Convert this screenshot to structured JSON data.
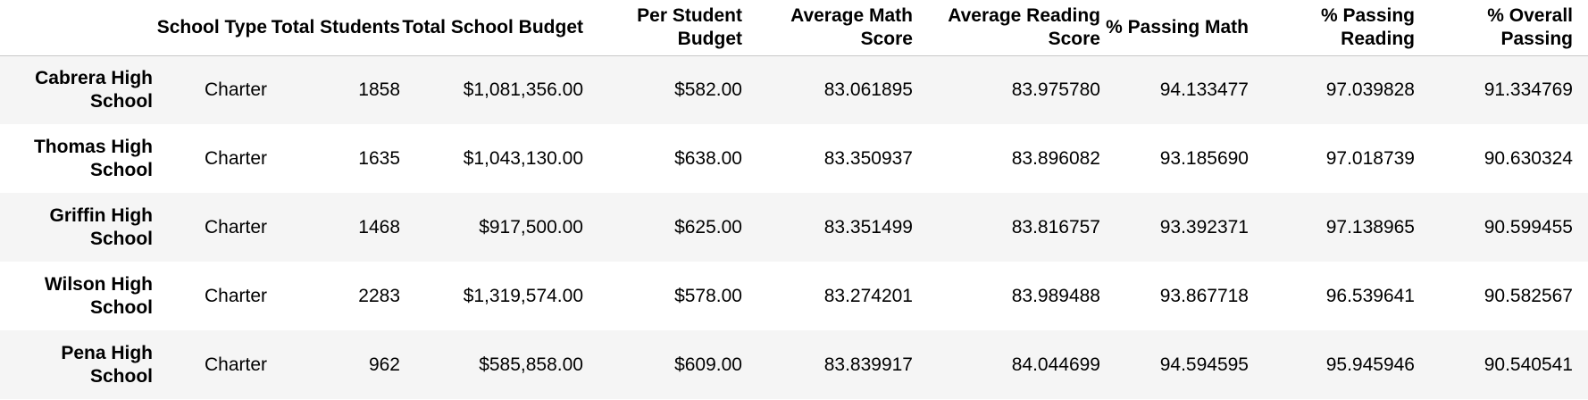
{
  "table": {
    "headers": {
      "index": "",
      "school_type": "School Type",
      "total_students": "Total Students",
      "total_budget": "Total School Budget",
      "per_student_budget": "Per Student Budget",
      "avg_math": "Average Math Score",
      "avg_reading": "Average Reading Score",
      "pct_math": "% Passing Math",
      "pct_reading": "% Passing Reading",
      "pct_overall": "% Overall Passing"
    },
    "rows": [
      {
        "school": "Cabrera High School",
        "school_type": "Charter",
        "total_students": "1858",
        "total_budget": "$1,081,356.00",
        "per_student_budget": "$582.00",
        "avg_math": "83.061895",
        "avg_reading": "83.975780",
        "pct_math": "94.133477",
        "pct_reading": "97.039828",
        "pct_overall": "91.334769"
      },
      {
        "school": "Thomas High School",
        "school_type": "Charter",
        "total_students": "1635",
        "total_budget": "$1,043,130.00",
        "per_student_budget": "$638.00",
        "avg_math": "83.350937",
        "avg_reading": "83.896082",
        "pct_math": "93.185690",
        "pct_reading": "97.018739",
        "pct_overall": "90.630324"
      },
      {
        "school": "Griffin High School",
        "school_type": "Charter",
        "total_students": "1468",
        "total_budget": "$917,500.00",
        "per_student_budget": "$625.00",
        "avg_math": "83.351499",
        "avg_reading": "83.816757",
        "pct_math": "93.392371",
        "pct_reading": "97.138965",
        "pct_overall": "90.599455"
      },
      {
        "school": "Wilson High School",
        "school_type": "Charter",
        "total_students": "2283",
        "total_budget": "$1,319,574.00",
        "per_student_budget": "$578.00",
        "avg_math": "83.274201",
        "avg_reading": "83.989488",
        "pct_math": "93.867718",
        "pct_reading": "96.539641",
        "pct_overall": "90.582567"
      },
      {
        "school": "Pena High School",
        "school_type": "Charter",
        "total_students": "962",
        "total_budget": "$585,858.00",
        "per_student_budget": "$609.00",
        "avg_math": "83.839917",
        "avg_reading": "84.044699",
        "pct_math": "94.594595",
        "pct_reading": "95.945946",
        "pct_overall": "90.540541"
      }
    ]
  }
}
